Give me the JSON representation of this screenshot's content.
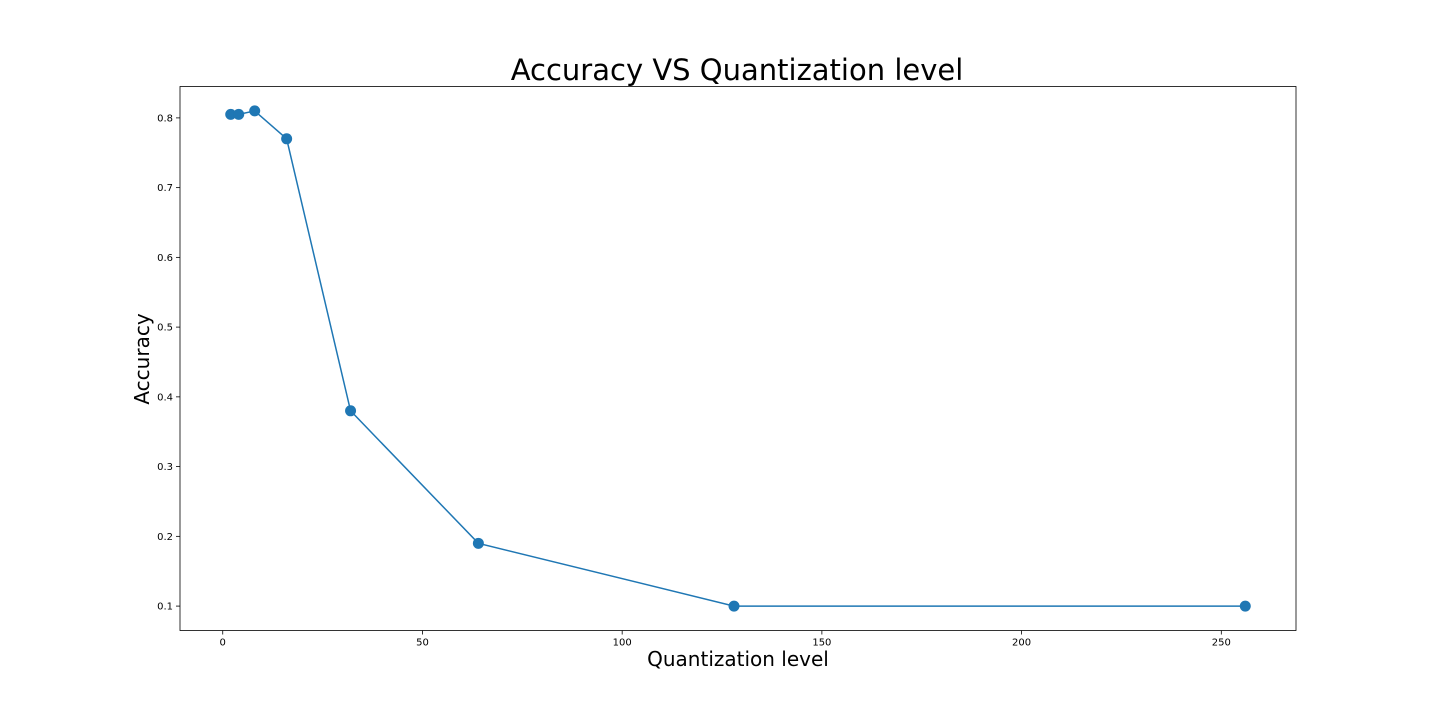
{
  "chart_data": {
    "type": "line",
    "title": "Accuracy VS Quantization level",
    "xlabel": "Quantization level",
    "ylabel": "Accuracy",
    "xlim": [
      -10.7,
      268.7
    ],
    "ylim": [
      0.065,
      0.845
    ],
    "xticks": [
      0,
      50,
      100,
      150,
      200,
      250
    ],
    "yticks": [
      0.1,
      0.2,
      0.3,
      0.4,
      0.5,
      0.6,
      0.7,
      0.8
    ],
    "xtick_labels": [
      "0",
      "50",
      "100",
      "150",
      "200",
      "250"
    ],
    "ytick_labels": [
      "0.1",
      "0.2",
      "0.3",
      "0.4",
      "0.5",
      "0.6",
      "0.7",
      "0.8"
    ],
    "grid": false,
    "series": [
      {
        "x": [
          2,
          4,
          8,
          16,
          32,
          64,
          128,
          256
        ],
        "y": [
          0.805,
          0.805,
          0.81,
          0.77,
          0.38,
          0.19,
          0.1,
          0.1
        ],
        "color": "#1f77b4",
        "marker": "circle"
      }
    ]
  }
}
